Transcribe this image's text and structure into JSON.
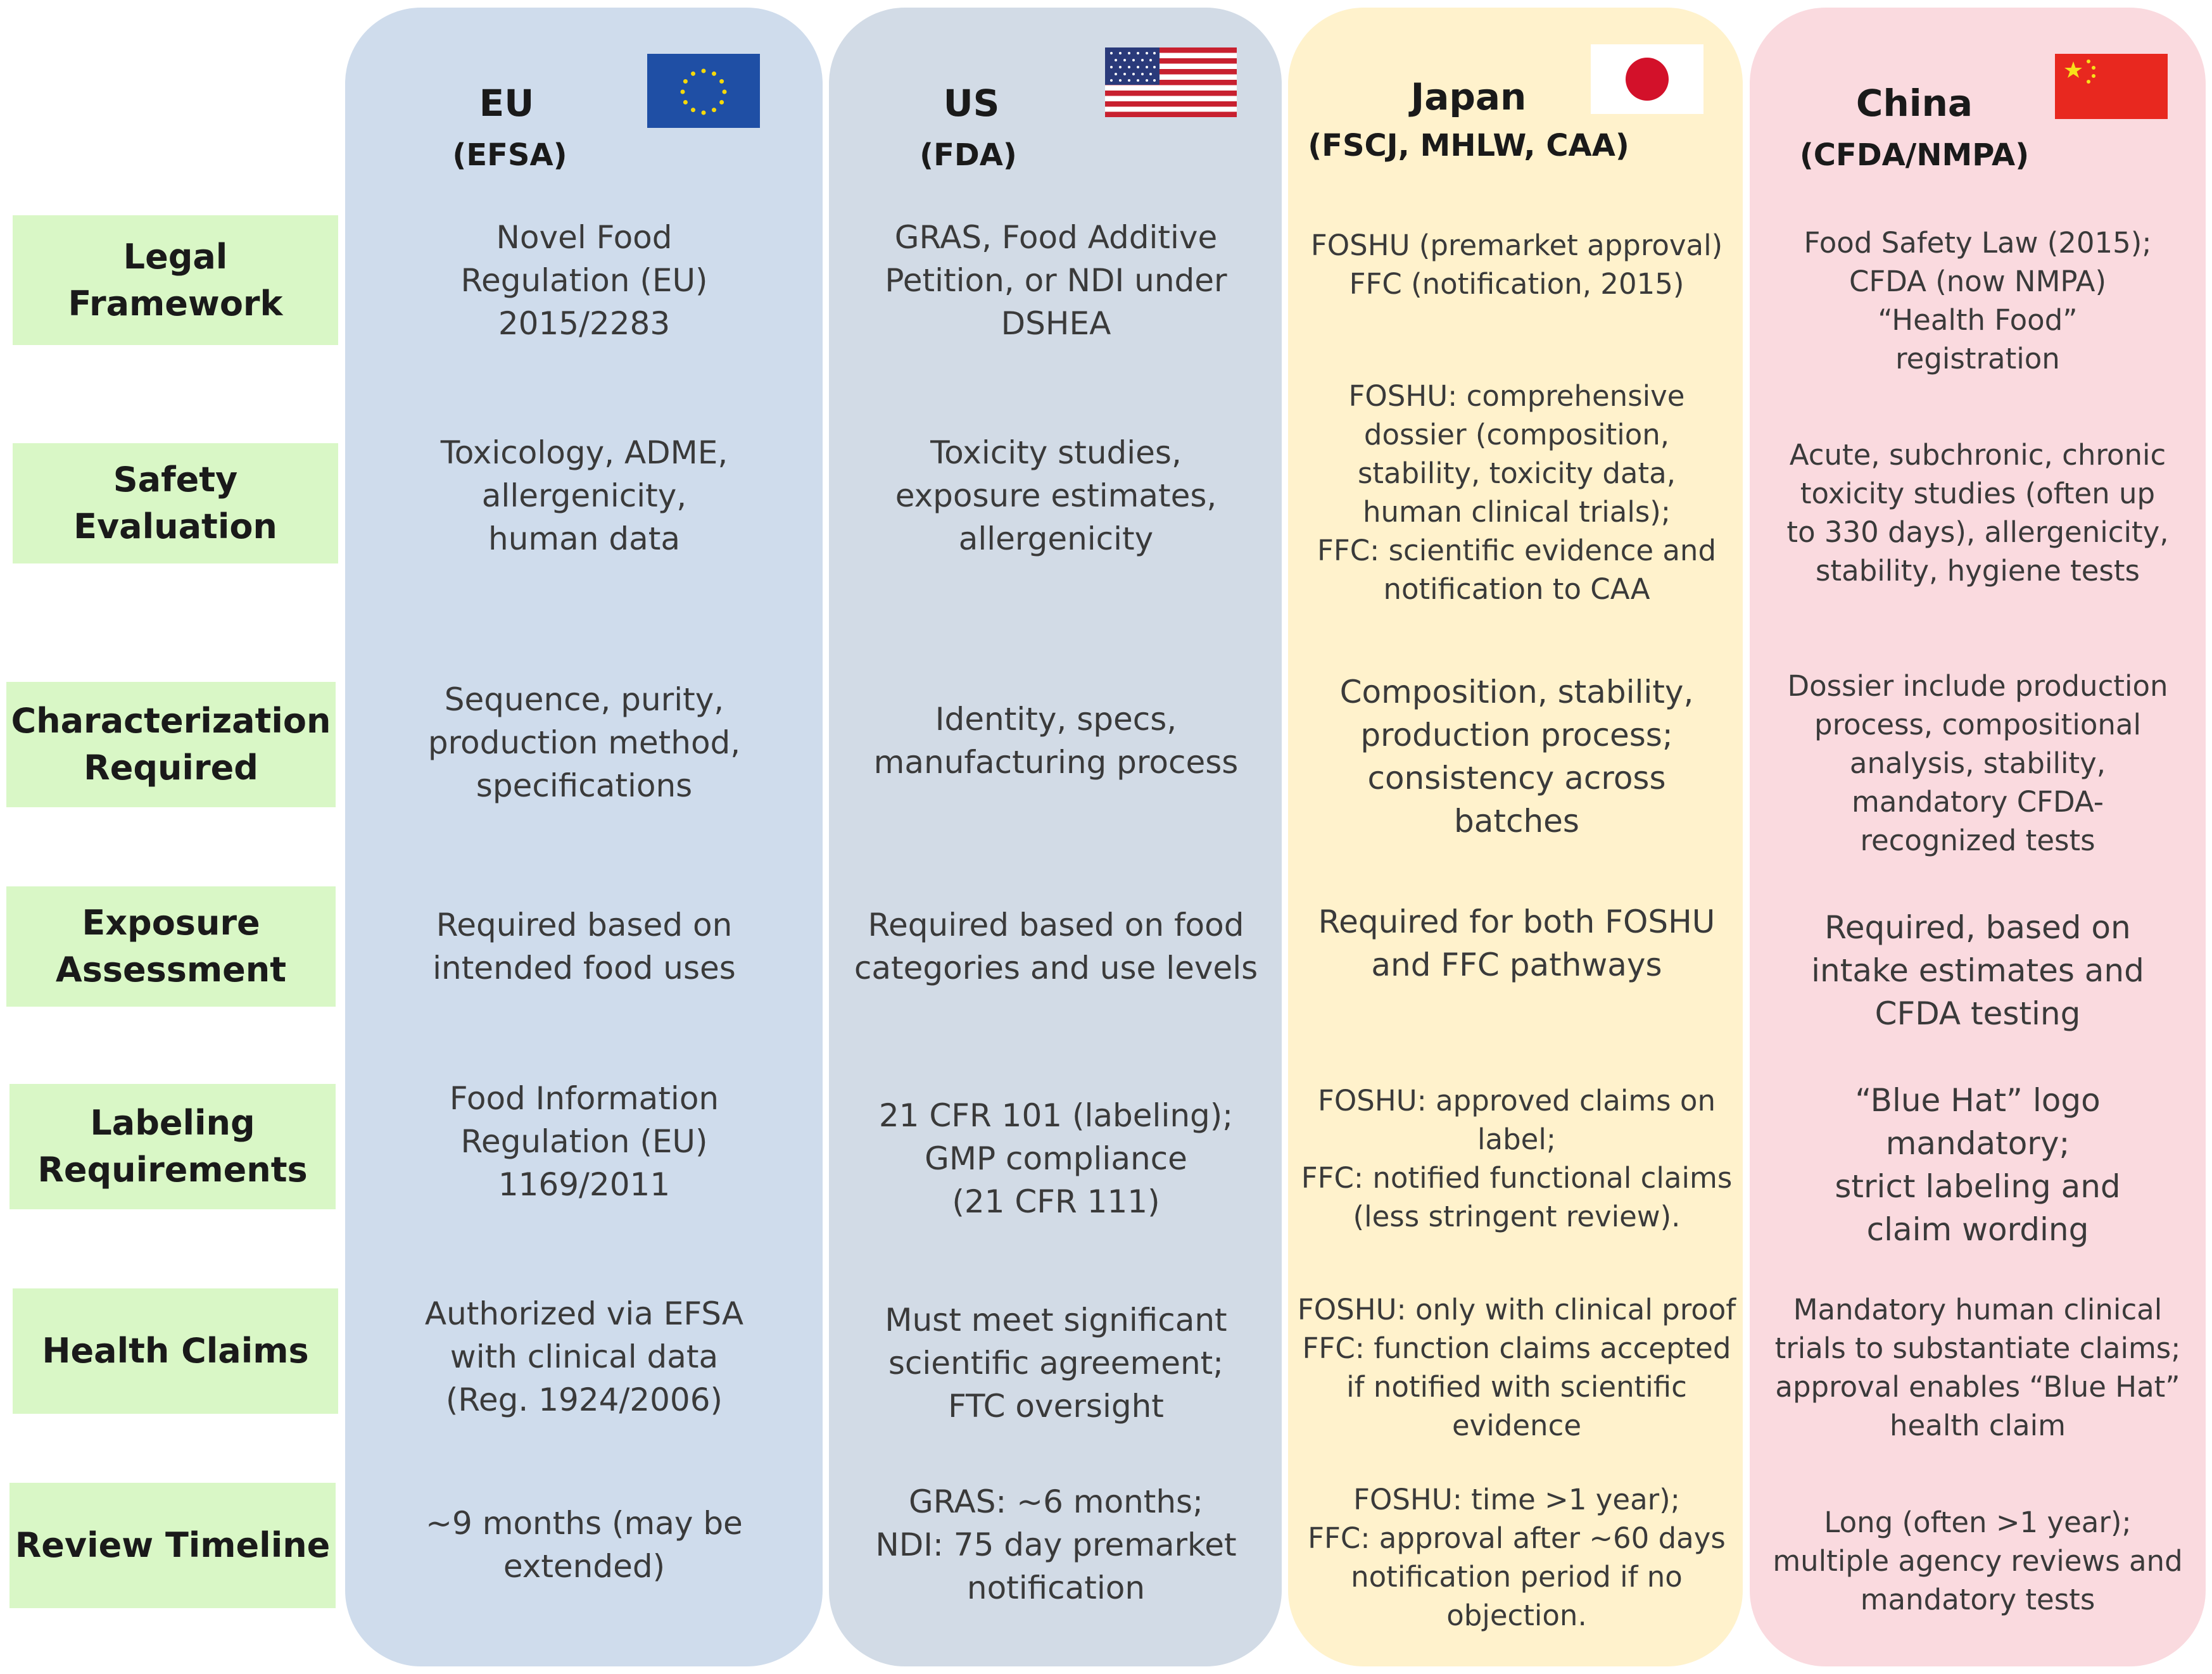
{
  "regions": [
    {
      "name": "EU",
      "agency": "(EFSA)",
      "flag_icon": "eu-flag-icon",
      "color": "#cfdcec"
    },
    {
      "name": "US",
      "agency": "(FDA)",
      "flag_icon": "us-flag-icon",
      "color": "#d2dbe6"
    },
    {
      "name": "Japan",
      "agency": "(FSCJ, MHLW, CAA)",
      "flag_icon": "japan-flag-icon",
      "color": "#fff2cc"
    },
    {
      "name": "China",
      "agency": "(CFDA/NMPA)",
      "flag_icon": "china-flag-icon",
      "color": "#fadadf"
    }
  ],
  "row_label_color": "#d9f7c6",
  "rows": [
    {
      "label": "Legal\nFramework",
      "cells": [
        "Novel Food\nRegulation (EU)\n2015/2283",
        "GRAS, Food Additive\nPetition, or NDI under\nDSHEA",
        "FOSHU (premarket approval)\nFFC (notification, 2015)",
        "Food Safety Law (2015);\nCFDA (now NMPA)\n“Health Food”\nregistration"
      ]
    },
    {
      "label": "Safety\nEvaluation",
      "cells": [
        "Toxicology, ADME,\nallergenicity,\nhuman data",
        "Toxicity studies,\nexposure estimates,\nallergenicity",
        "FOSHU: comprehensive\ndossier (composition,\nstability, toxicity data,\nhuman clinical trials);\nFFC: scientific evidence and\nnotification to CAA",
        "Acute, subchronic, chronic\ntoxicity studies (often up\nto 330 days), allergenicity,\nstability, hygiene tests"
      ]
    },
    {
      "label": "Characterization\nRequired",
      "cells": [
        "Sequence, purity,\nproduction method,\nspecifications",
        "Identity, specs,\nmanufacturing process",
        "Composition, stability,\nproduction process;\nconsistency across\nbatches",
        "Dossier include production\nprocess, compositional\nanalysis, stability,\nmandatory CFDA-\nrecognized tests"
      ]
    },
    {
      "label": "Exposure\nAssessment",
      "cells": [
        "Required based on\nintended food uses",
        "Required based on food\ncategories and use levels",
        "Required for both FOSHU\nand FFC pathways",
        "Required, based on\nintake estimates and\nCFDA testing"
      ]
    },
    {
      "label": "Labeling\nRequirements",
      "cells": [
        "Food Information\nRegulation (EU)\n1169/2011",
        "21 CFR 101 (labeling);\nGMP compliance\n(21 CFR 111)",
        "FOSHU: approved claims on\nlabel;\nFFC: notified functional claims\n(less stringent review).",
        "“Blue Hat” logo\nmandatory;\nstrict labeling and\nclaim wording"
      ]
    },
    {
      "label": "Health Claims",
      "cells": [
        "Authorized via EFSA\nwith clinical data\n(Reg. 1924/2006)",
        "Must meet significant\nscientific agreement;\nFTC oversight",
        "FOSHU: only with clinical proof\nFFC: function claims accepted\nif notified with scientific\nevidence",
        "Mandatory human clinical\ntrials to substantiate claims;\napproval enables “Blue Hat”\nhealth claim"
      ]
    },
    {
      "label": "Review Timeline",
      "cells": [
        "~9 months (may be\nextended)",
        "GRAS: ~6 months;\nNDI: 75 day premarket\nnotification",
        "FOSHU: time >1 year);\nFFC: approval after ~60 days\nnotification period if no\nobjection.",
        "Long (often >1 year);\nmultiple agency reviews and\nmandatory tests"
      ]
    }
  ]
}
